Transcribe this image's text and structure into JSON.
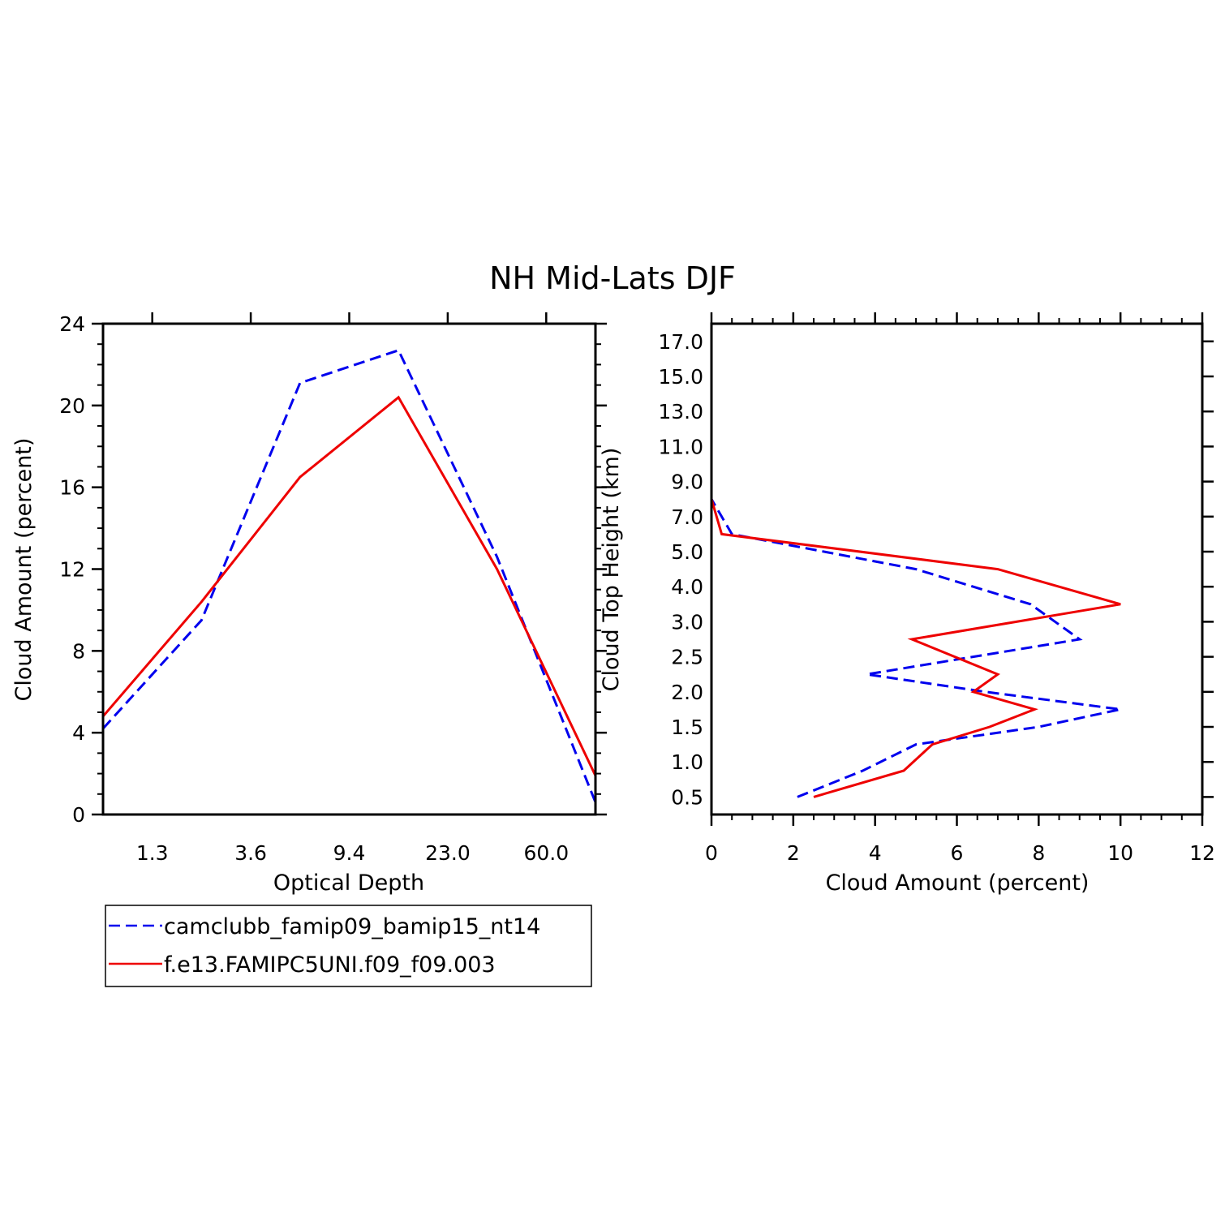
{
  "title": "NH Mid-Lats DJF",
  "colors": {
    "series1": "#0000ee",
    "series2": "#ee0000",
    "axis": "#000000"
  },
  "chart_data": [
    {
      "type": "line",
      "xlabel": "Optical Depth",
      "ylabel": "Cloud Amount (percent)",
      "ylim": [
        0,
        24
      ],
      "y_ticks": [
        "0",
        "4",
        "8",
        "12",
        "16",
        "20",
        "24"
      ],
      "x_tick_labels": [
        "1.3",
        "3.6",
        "9.4",
        "23.0",
        "60.0"
      ],
      "x": [
        0,
        1,
        2,
        3,
        4,
        5
      ],
      "series": [
        {
          "name": "camclubb_famip09_bamip15_nt14",
          "style": "dashed",
          "values": [
            4.2,
            9.5,
            21.1,
            22.7,
            12.6,
            0.6
          ]
        },
        {
          "name": "f.e13.FAMIPC5UNI.f09_f09.003",
          "style": "solid",
          "values": [
            4.8,
            10.4,
            16.5,
            20.4,
            12.0,
            1.9
          ]
        }
      ]
    },
    {
      "type": "line",
      "xlabel": "Cloud Amount (percent)",
      "ylabel": "Cloud Top Height (km)",
      "xlim": [
        0,
        12
      ],
      "x_ticks": [
        "0",
        "2",
        "4",
        "6",
        "8",
        "10",
        "12"
      ],
      "y_tick_labels": [
        "0.5",
        "1.0",
        "1.5",
        "2.0",
        "2.5",
        "3.0",
        "4.0",
        "5.0",
        "7.0",
        "9.0",
        "11.0",
        "13.0",
        "15.0",
        "17.0"
      ],
      "levels": [
        0,
        0.75,
        1.5,
        2,
        2.5,
        3,
        3.5,
        4.5,
        5.5,
        6.5,
        7.5,
        8.5,
        9.5,
        10.5,
        11,
        11.5,
        13.5
      ],
      "series": [
        {
          "name": "camclubb_famip09_bamip15_nt14",
          "style": "dashed",
          "values": [
            2.1,
            3.7,
            5.0,
            8.0,
            10.0,
            6.7,
            3.8,
            9.0,
            7.8,
            5.0,
            0.5,
            0.0,
            0.0,
            0.0,
            0.0,
            0.0,
            0.0
          ]
        },
        {
          "name": "f.e13.FAMIPC5UNI.f09_f09.003",
          "style": "solid",
          "values": [
            2.5,
            4.7,
            5.4,
            6.8,
            7.9,
            6.4,
            7.0,
            4.9,
            10.0,
            7.0,
            0.25,
            0.0,
            0.0,
            0.0,
            0.0,
            0.0,
            0.0
          ]
        }
      ]
    }
  ],
  "legend": [
    {
      "label": "camclubb_famip09_bamip15_nt14",
      "style": "dashed"
    },
    {
      "label": "f.e13.FAMIPC5UNI.f09_f09.003",
      "style": "solid"
    }
  ]
}
